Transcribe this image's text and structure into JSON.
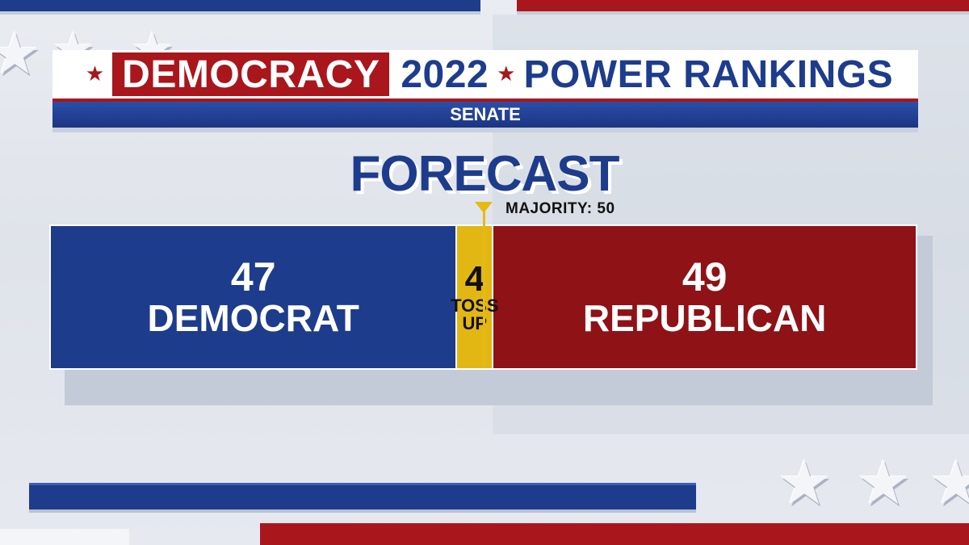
{
  "header": {
    "democracy": "DEMOCRACY",
    "year": "2022",
    "title": "POWER RANKINGS",
    "subtitle": "SENATE"
  },
  "forecast_title": "FORECAST",
  "majority": {
    "label": "MAJORITY:",
    "value": "50"
  },
  "segments": [
    {
      "key": "democrat",
      "number": "47",
      "label": "DEMOCRAT",
      "seats": 47,
      "color": "#1e3c8c"
    },
    {
      "key": "tossup",
      "number": "4",
      "label_line1": "TOSS",
      "label_line2": "UP",
      "seats": 4,
      "color": "#e2b714"
    },
    {
      "key": "republican",
      "number": "49",
      "label": "REPUBLICAN",
      "seats": 49,
      "color": "#8e1216"
    }
  ],
  "colors": {
    "blue": "#1e3c8c",
    "red": "#a9161c",
    "gold": "#e2b714"
  }
}
